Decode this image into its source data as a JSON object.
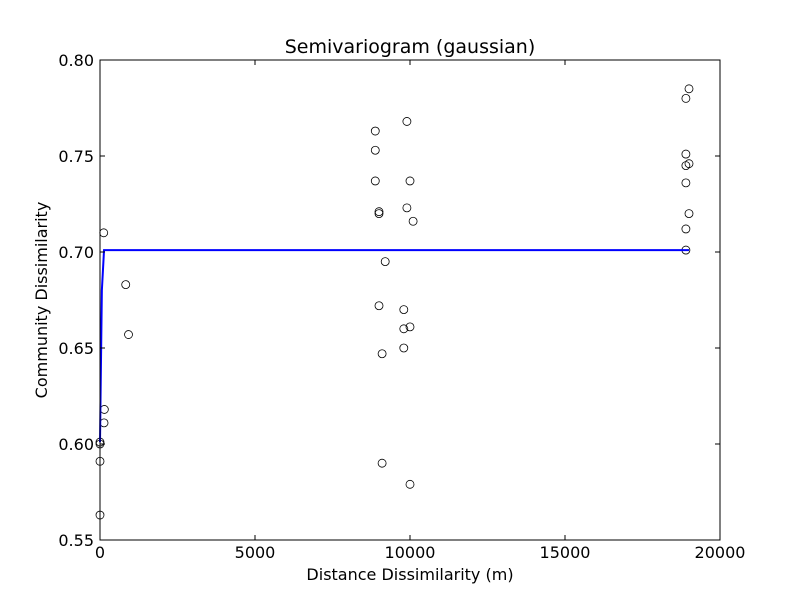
{
  "chart_data": {
    "type": "scatter",
    "title": "Semivariogram (gaussian)",
    "xlabel": "Distance Dissimilarity (m)",
    "ylabel": "Community Dissimilarity",
    "xlim": [
      0,
      20000
    ],
    "ylim": [
      0.55,
      0.8
    ],
    "x_ticks": [
      0,
      5000,
      10000,
      15000,
      20000
    ],
    "x_tick_labels": [
      "0",
      "5000",
      "10000",
      "15000",
      "20000"
    ],
    "y_ticks": [
      0.55,
      0.6,
      0.65,
      0.7,
      0.75,
      0.8
    ],
    "y_tick_labels": [
      "0.55",
      "0.60",
      "0.65",
      "0.70",
      "0.75",
      "0.80"
    ],
    "grid": false,
    "series": [
      {
        "kind": "points",
        "marker": "open-circle",
        "color": "#000000",
        "points": [
          [
            0,
            0.563
          ],
          [
            0,
            0.591
          ],
          [
            0,
            0.6
          ],
          [
            0,
            0.601
          ],
          [
            130,
            0.611
          ],
          [
            140,
            0.618
          ],
          [
            120,
            0.71
          ],
          [
            830,
            0.683
          ],
          [
            920,
            0.657
          ],
          [
            8880,
            0.763
          ],
          [
            8880,
            0.753
          ],
          [
            8880,
            0.737
          ],
          [
            9000,
            0.721
          ],
          [
            9000,
            0.72
          ],
          [
            9000,
            0.672
          ],
          [
            9100,
            0.647
          ],
          [
            9100,
            0.59
          ],
          [
            9200,
            0.695
          ],
          [
            9800,
            0.67
          ],
          [
            9800,
            0.66
          ],
          [
            9800,
            0.65
          ],
          [
            9900,
            0.768
          ],
          [
            9900,
            0.723
          ],
          [
            10000,
            0.737
          ],
          [
            10000,
            0.661
          ],
          [
            10000,
            0.579
          ],
          [
            10100,
            0.716
          ],
          [
            18900,
            0.78
          ],
          [
            18900,
            0.751
          ],
          [
            18900,
            0.745
          ],
          [
            18900,
            0.736
          ],
          [
            18900,
            0.712
          ],
          [
            18900,
            0.701
          ],
          [
            19000,
            0.785
          ],
          [
            19000,
            0.746
          ],
          [
            19000,
            0.72
          ]
        ]
      },
      {
        "kind": "line",
        "color": "#0000ff",
        "points": [
          [
            0,
            0.601
          ],
          [
            60,
            0.68
          ],
          [
            130,
            0.701
          ],
          [
            19000,
            0.701
          ]
        ]
      }
    ]
  }
}
